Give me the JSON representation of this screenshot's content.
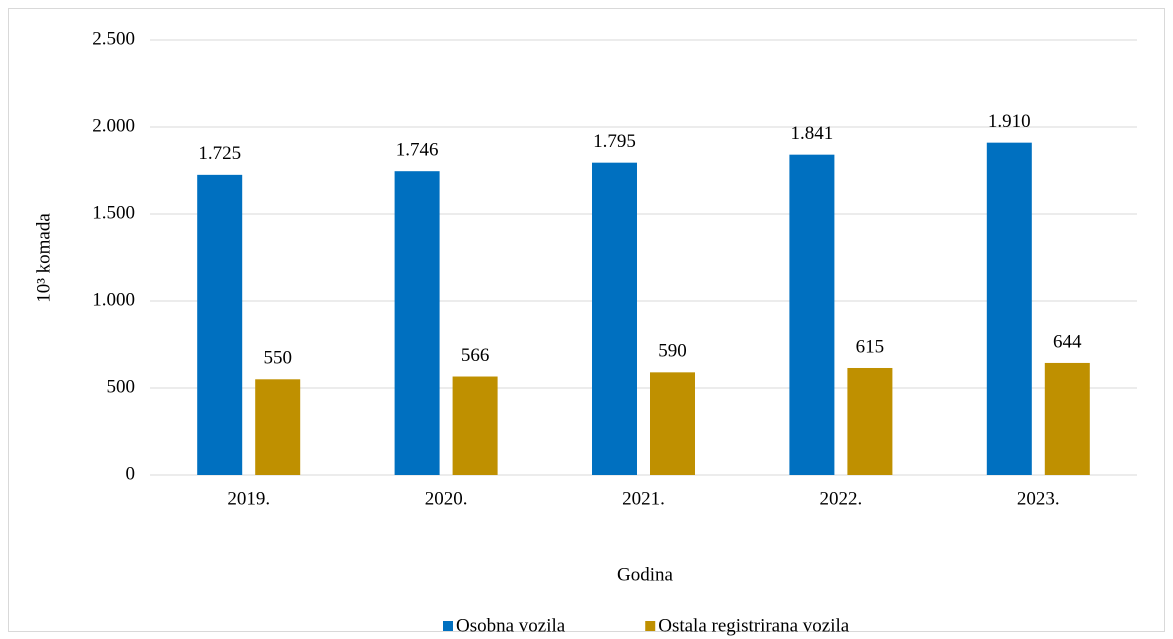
{
  "chart_data": {
    "type": "bar",
    "categories": [
      "2019.",
      "2020.",
      "2021.",
      "2022.",
      "2023."
    ],
    "series": [
      {
        "name": "Osobna vozila",
        "color": "#0070c0",
        "values": [
          1725,
          1746,
          1795,
          1841,
          1910
        ],
        "value_labels": [
          "1.725",
          "1.746",
          "1.795",
          "1.841",
          "1.910"
        ]
      },
      {
        "name": "Ostala registrirana vozila",
        "color": "#bf9000",
        "values": [
          550,
          566,
          590,
          615,
          644
        ]
      }
    ],
    "xlabel": "Godina",
    "ylabel": "10³ komada",
    "ylim": [
      0,
      2500
    ],
    "yticks": [
      0,
      500,
      {
        "value": 1000,
        "label": "1.000"
      },
      {
        "value": 1500,
        "label": "1.500"
      },
      {
        "value": 2000,
        "label": "2.000"
      },
      {
        "value": 2500,
        "label": "2.500"
      }
    ],
    "grid": true,
    "legend": "bottom"
  }
}
